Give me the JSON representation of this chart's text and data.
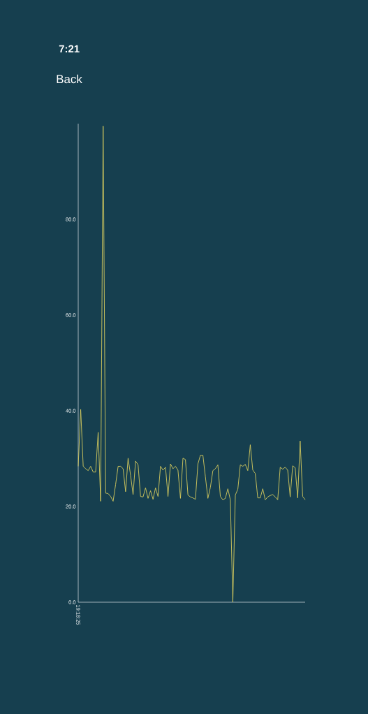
{
  "chart_data": {
    "type": "line",
    "color": "#d8cd5e",
    "annotations": [
      "7:21",
      "Back"
    ],
    "categories": [
      "19:18:25",
      null,
      null,
      null,
      null,
      null,
      null,
      null,
      null,
      null,
      null,
      null,
      null,
      null,
      null,
      null,
      null,
      null,
      null,
      null,
      null,
      null,
      null,
      null,
      null,
      null,
      null,
      null,
      null,
      null,
      null,
      null,
      null,
      null,
      null,
      null,
      null,
      null,
      null,
      null,
      null,
      null,
      null,
      null,
      null,
      null,
      null,
      null,
      null,
      null,
      null,
      null,
      null,
      null,
      null,
      null,
      null,
      null,
      null,
      null,
      null,
      null,
      null,
      null,
      null,
      null,
      null,
      null,
      null,
      null,
      null,
      null,
      null,
      null,
      null,
      null,
      null,
      null,
      null,
      null,
      null,
      null,
      null,
      null,
      null,
      null,
      null,
      null,
      null,
      null,
      null,
      null
    ],
    "values": [
      28.4,
      40.3,
      28.4,
      27.9,
      27.5,
      28.4,
      27.2,
      27.2,
      35.5,
      21.1,
      99.5,
      22.8,
      22.7,
      22.1,
      21.1,
      24.6,
      28.4,
      28.4,
      27.9,
      23.1,
      30.1,
      26.5,
      22.5,
      29.5,
      28.7,
      22.1,
      22.0,
      23.9,
      21.7,
      23.3,
      21.5,
      23.9,
      22.1,
      28.4,
      27.6,
      28.2,
      22.1,
      28.9,
      27.9,
      28.4,
      27.6,
      21.7,
      30.1,
      29.8,
      22.4,
      22.0,
      21.8,
      21.5,
      28.9,
      30.7,
      30.7,
      26.2,
      21.7,
      24.0,
      27.5,
      27.9,
      28.7,
      22.1,
      21.4,
      21.7,
      23.7,
      21.4,
      0,
      22.4,
      23.6,
      28.7,
      28.4,
      28.8,
      27.5,
      32.9,
      27.6,
      26.9,
      21.8,
      21.8,
      23.7,
      21.4,
      22.0,
      22.3,
      22.5,
      22.0,
      21.4,
      28.2,
      27.8,
      28.2,
      27.6,
      22.0,
      28.5,
      28.1,
      21.8,
      33.7,
      22.1,
      21.4
    ],
    "ylim": [
      0,
      100
    ],
    "yticks": [
      {
        "value": 0,
        "label": "0.0"
      },
      {
        "value": 20,
        "label": "20.0"
      },
      {
        "value": 40,
        "label": "40.0"
      },
      {
        "value": 60,
        "label": "60.0"
      },
      {
        "value": 80,
        "label": "80.0"
      }
    ]
  }
}
